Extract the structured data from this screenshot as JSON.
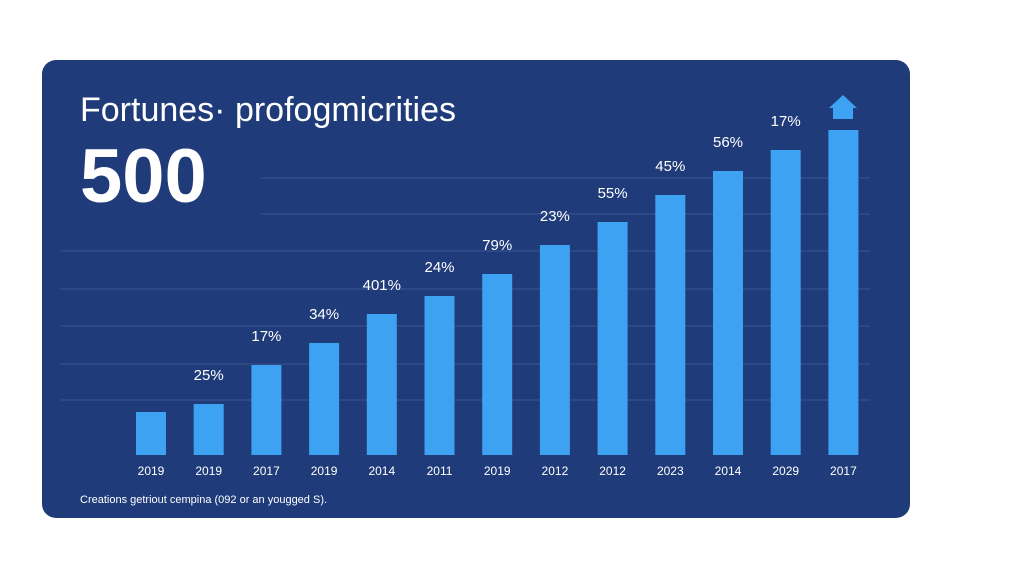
{
  "chart_data": {
    "type": "bar",
    "title": "Fortunes· profogmicrities",
    "subtitle": "500",
    "footnote": "Creations getriout cempina (092 or an yougged S).",
    "categories": [
      "2019",
      "2019",
      "2017",
      "2019",
      "2014",
      "2011",
      "2019",
      "2012",
      "2012",
      "2023",
      "2014",
      "2029",
      "2017"
    ],
    "values": [
      43,
      51,
      90,
      112,
      141,
      159,
      181,
      210,
      233,
      260,
      284,
      305,
      325
    ],
    "bar_labels": [
      null,
      "25%",
      "17%",
      "34%",
      "401%",
      "24%",
      "79%",
      "23%",
      "55%",
      "45%",
      "56%",
      "17%",
      null
    ],
    "color": "#3ea2f2",
    "ylim": [
      0,
      340
    ]
  }
}
